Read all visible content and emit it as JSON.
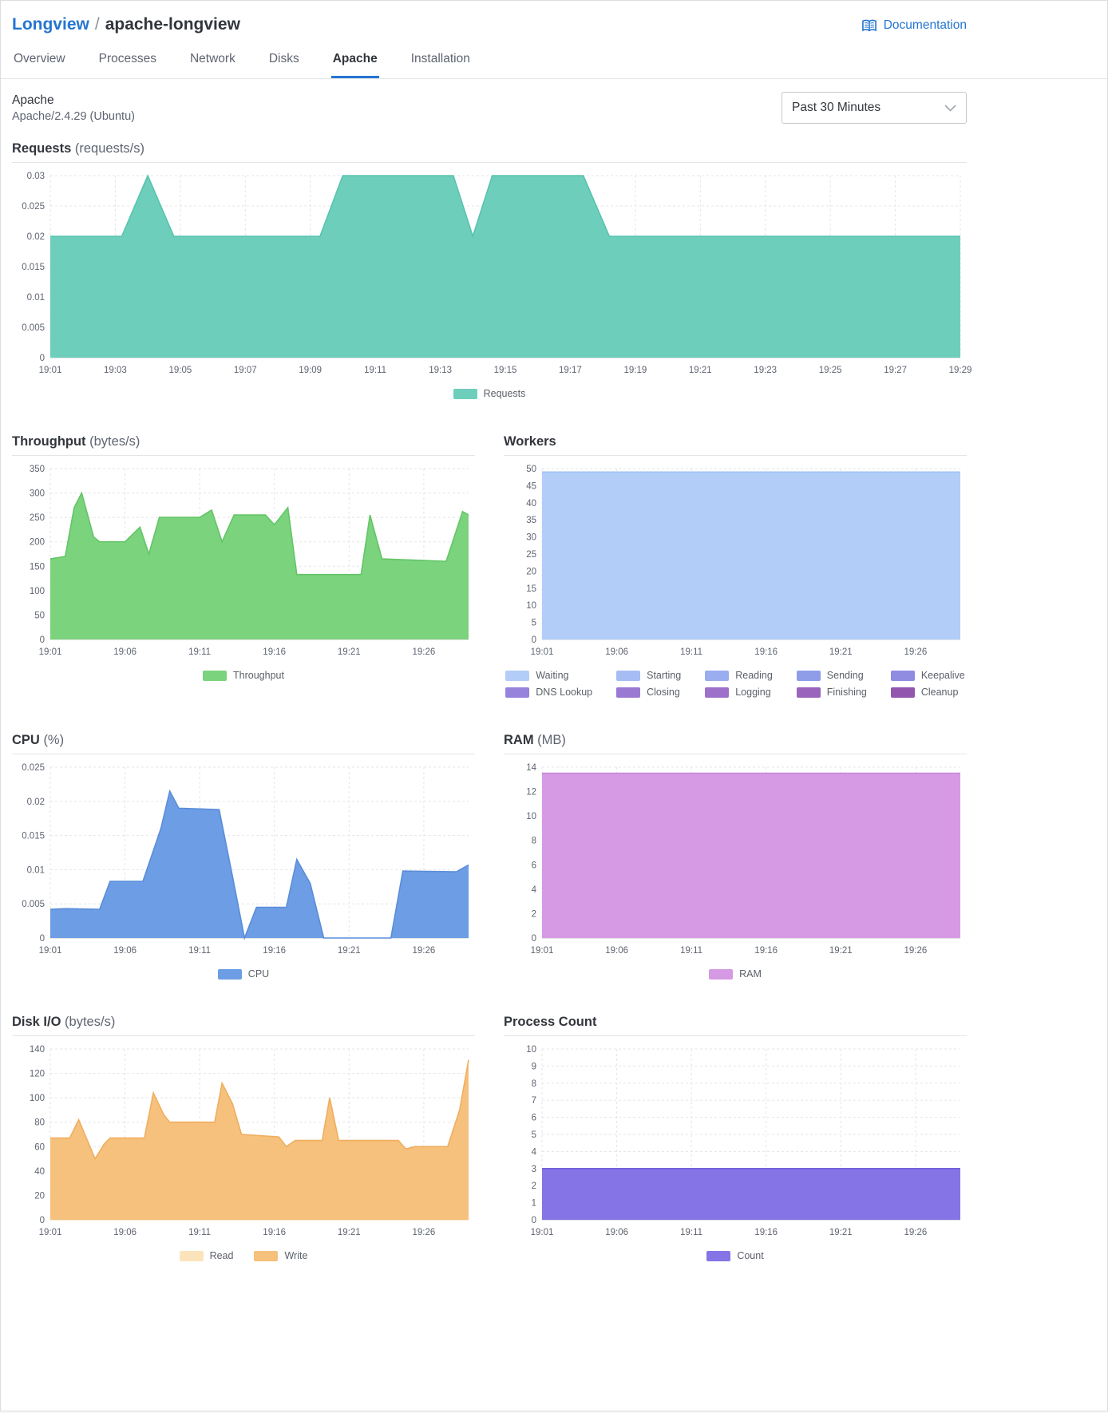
{
  "header": {
    "breadcrumb": {
      "root": "Longview",
      "separator": "/",
      "current": "apache-longview"
    },
    "documentation_label": "Documentation"
  },
  "tabs": {
    "items": [
      {
        "label": "Overview"
      },
      {
        "label": "Processes"
      },
      {
        "label": "Network"
      },
      {
        "label": "Disks"
      },
      {
        "label": "Apache"
      },
      {
        "label": "Installation"
      }
    ],
    "active": "Apache"
  },
  "toolbar": {
    "title": "Apache",
    "subtitle": "Apache/2.4.29 (Ubuntu)",
    "time_range": "Past 30 Minutes"
  },
  "accent_color": "#2575d0",
  "charts": {
    "requests": {
      "type": "area",
      "title": "Requests",
      "unit": "(requests/s)",
      "ylim": [
        0,
        0.03
      ],
      "yticks": [
        0,
        0.005,
        0.01,
        0.015,
        0.02,
        0.025,
        0.03
      ],
      "xlim": [
        1,
        29
      ],
      "xticks": [
        "19:01",
        "19:03",
        "19:05",
        "19:07",
        "19:09",
        "19:11",
        "19:13",
        "19:15",
        "19:17",
        "19:19",
        "19:21",
        "19:23",
        "19:25",
        "19:27",
        "19:29"
      ],
      "xtick_pos": [
        1,
        3,
        5,
        7,
        9,
        11,
        13,
        15,
        17,
        19,
        21,
        23,
        25,
        27,
        29
      ],
      "series": [
        {
          "name": "Requests",
          "color": "#6ecebc",
          "stroke": "#57c3ae",
          "x": [
            1,
            3.2,
            4,
            4.8,
            9.3,
            10,
            13.4,
            14,
            14.6,
            17.4,
            18.2,
            29
          ],
          "values": [
            0.02,
            0.02,
            0.03,
            0.02,
            0.02,
            0.03,
            0.03,
            0.02,
            0.03,
            0.03,
            0.02,
            0.02
          ]
        }
      ],
      "legend": [
        {
          "label": "Requests",
          "color": "#6ecebc"
        }
      ]
    },
    "throughput": {
      "type": "area",
      "title": "Throughput",
      "unit": "(bytes/s)",
      "ylim": [
        0,
        350
      ],
      "yticks": [
        0,
        50,
        100,
        150,
        200,
        250,
        300,
        350
      ],
      "xlim": [
        1,
        29
      ],
      "xticks": [
        "19:01",
        "19:06",
        "19:11",
        "19:16",
        "19:21",
        "19:26"
      ],
      "xtick_pos": [
        1,
        6,
        11,
        16,
        21,
        26
      ],
      "series": [
        {
          "name": "Throughput",
          "color": "#7bd37d",
          "stroke": "#63c567",
          "x": [
            1,
            2,
            2.6,
            3.1,
            3.9,
            4.3,
            6,
            7,
            7.6,
            8.3,
            11,
            11.8,
            12.5,
            13.3,
            15.4,
            16,
            16.9,
            17.5,
            21.8,
            22.4,
            23.2,
            27.5,
            28.6,
            29
          ],
          "values": [
            165,
            170,
            270,
            300,
            210,
            200,
            200,
            230,
            175,
            250,
            250,
            265,
            200,
            255,
            255,
            235,
            270,
            133,
            133,
            255,
            165,
            160,
            262,
            255
          ]
        }
      ],
      "legend": [
        {
          "label": "Throughput",
          "color": "#7bd37d"
        }
      ]
    },
    "workers": {
      "type": "area",
      "title": "Workers",
      "unit": "",
      "ylim": [
        0,
        50
      ],
      "yticks": [
        0,
        5,
        10,
        15,
        20,
        25,
        30,
        35,
        40,
        45,
        50
      ],
      "xlim": [
        1,
        29
      ],
      "xticks": [
        "19:01",
        "19:06",
        "19:11",
        "19:16",
        "19:21",
        "19:26"
      ],
      "xtick_pos": [
        1,
        6,
        11,
        16,
        21,
        26
      ],
      "series": [
        {
          "name": "Waiting",
          "color": "#b2cdf8",
          "stroke": "#a3c1f4",
          "x": [
            1,
            29
          ],
          "values": [
            49,
            49
          ]
        }
      ],
      "legend": [
        {
          "label": "Waiting",
          "color": "#b2cdf8"
        },
        {
          "label": "Starting",
          "color": "#a6bdf3"
        },
        {
          "label": "Reading",
          "color": "#9aadee"
        },
        {
          "label": "Sending",
          "color": "#8f9de9"
        },
        {
          "label": "Keepalive",
          "color": "#8f8ce2"
        },
        {
          "label": "DNS Lookup",
          "color": "#9783db"
        },
        {
          "label": "Closing",
          "color": "#9a79d2"
        },
        {
          "label": "Logging",
          "color": "#9d70c9"
        },
        {
          "label": "Finishing",
          "color": "#9a64bd"
        },
        {
          "label": "Cleanup",
          "color": "#9356ae"
        }
      ]
    },
    "cpu": {
      "type": "area",
      "title": "CPU",
      "unit": "(%)",
      "ylim": [
        0,
        0.025
      ],
      "yticks": [
        0,
        0.005,
        0.01,
        0.015,
        0.02,
        0.025
      ],
      "xlim": [
        1,
        29
      ],
      "xticks": [
        "19:01",
        "19:06",
        "19:11",
        "19:16",
        "19:21",
        "19:26"
      ],
      "xtick_pos": [
        1,
        6,
        11,
        16,
        21,
        26
      ],
      "series": [
        {
          "name": "CPU",
          "color": "#6d9de4",
          "stroke": "#5a8dd9",
          "x": [
            1,
            2,
            4.3,
            5,
            7.2,
            8.4,
            9,
            9.6,
            12.3,
            13.2,
            14,
            14.8,
            16.8,
            17.5,
            18.4,
            19.3,
            23.8,
            24.6,
            28.2,
            29
          ],
          "values": [
            0.0042,
            0.0043,
            0.0042,
            0.0083,
            0.0083,
            0.016,
            0.0215,
            0.019,
            0.0188,
            0.009,
            0,
            0.0045,
            0.0045,
            0.0115,
            0.008,
            0,
            0,
            0.0098,
            0.0097,
            0.0107
          ]
        }
      ],
      "legend": [
        {
          "label": "CPU",
          "color": "#6d9de4"
        }
      ]
    },
    "ram": {
      "type": "area",
      "title": "RAM",
      "unit": "(MB)",
      "ylim": [
        0,
        14
      ],
      "yticks": [
        0,
        2,
        4,
        6,
        8,
        10,
        12,
        14
      ],
      "xlim": [
        1,
        29
      ],
      "xticks": [
        "19:01",
        "19:06",
        "19:11",
        "19:16",
        "19:21",
        "19:26"
      ],
      "xtick_pos": [
        1,
        6,
        11,
        16,
        21,
        26
      ],
      "series": [
        {
          "name": "RAM",
          "color": "#d69ae4",
          "stroke": "#c987da",
          "x": [
            1,
            29
          ],
          "values": [
            13.5,
            13.5
          ]
        }
      ],
      "legend": [
        {
          "label": "RAM",
          "color": "#d69ae4"
        }
      ]
    },
    "disk": {
      "type": "area",
      "title": "Disk I/O",
      "unit": "(bytes/s)",
      "ylim": [
        0,
        140
      ],
      "yticks": [
        0,
        20,
        40,
        60,
        80,
        100,
        120,
        140
      ],
      "xlim": [
        1,
        29
      ],
      "xticks": [
        "19:01",
        "19:06",
        "19:11",
        "19:16",
        "19:21",
        "19:26"
      ],
      "xtick_pos": [
        1,
        6,
        11,
        16,
        21,
        26
      ],
      "series": [
        {
          "name": "Read",
          "color": "#fbe4bb",
          "stroke": "#fbe4bb",
          "x": [
            1,
            29
          ],
          "values": [
            0,
            0
          ]
        },
        {
          "name": "Write",
          "color": "#f6c17c",
          "stroke": "#efae5f",
          "x": [
            1,
            2.3,
            2.9,
            4,
            4.6,
            5,
            7.3,
            7.9,
            8.6,
            9,
            12,
            12.5,
            13.2,
            13.8,
            16.3,
            16.8,
            17.4,
            19.2,
            19.7,
            20.3,
            24.3,
            24.8,
            25.4,
            27.6,
            28.4,
            29
          ],
          "values": [
            67,
            67,
            82,
            50,
            62,
            67,
            67,
            104,
            86,
            80,
            80,
            112,
            95,
            70,
            68,
            60,
            65,
            65,
            100,
            65,
            65,
            58,
            60,
            60,
            90,
            131
          ]
        }
      ],
      "legend": [
        {
          "label": "Read",
          "color": "#fbe4bb"
        },
        {
          "label": "Write",
          "color": "#f6c17c"
        }
      ]
    },
    "process_count": {
      "type": "area",
      "title": "Process Count",
      "unit": "",
      "ylim": [
        0,
        10
      ],
      "yticks": [
        0,
        1,
        2,
        3,
        4,
        5,
        6,
        7,
        8,
        9,
        10
      ],
      "xlim": [
        1,
        29
      ],
      "xticks": [
        "19:01",
        "19:06",
        "19:11",
        "19:16",
        "19:21",
        "19:26"
      ],
      "xtick_pos": [
        1,
        6,
        11,
        16,
        21,
        26
      ],
      "series": [
        {
          "name": "Count",
          "color": "#8474e6",
          "stroke": "#7060da",
          "x": [
            1,
            29
          ],
          "values": [
            3,
            3
          ]
        }
      ],
      "legend": [
        {
          "label": "Count",
          "color": "#8474e6"
        }
      ]
    }
  }
}
